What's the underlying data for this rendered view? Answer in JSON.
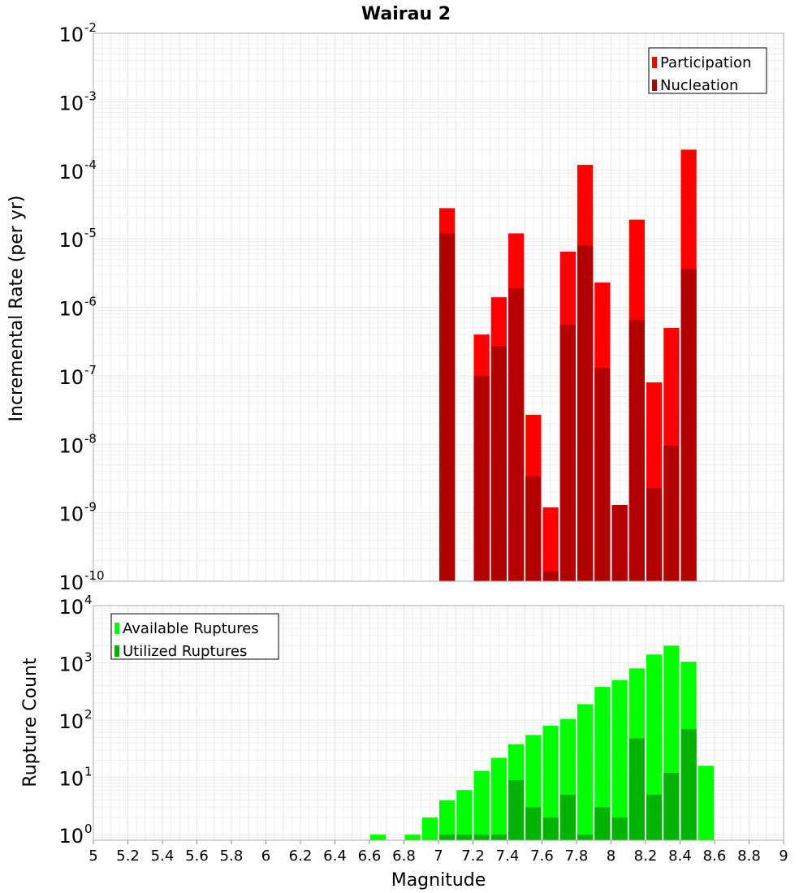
{
  "title": "Wairau 2",
  "colors": {
    "participation": "#ff0000",
    "nucleation": "#b30000",
    "available": "#00ff00",
    "utilized": "#00b300",
    "grid": "#e8e8e8",
    "border": "#aaaaaa"
  },
  "chart_data": [
    {
      "type": "bar",
      "panel": "top",
      "ylabel": "Incremental Rate (per yr)",
      "yscale": "log",
      "ylim": [
        1e-10,
        0.01
      ],
      "xlim": [
        5,
        9
      ],
      "legend_position": "top-right",
      "series": [
        {
          "name": "Participation",
          "x": [
            7.05,
            7.25,
            7.35,
            7.45,
            7.55,
            7.65,
            7.75,
            7.85,
            7.95,
            8.05,
            8.15,
            8.25,
            8.35,
            8.45
          ],
          "values": [
            2.8e-05,
            4e-07,
            1.4e-06,
            1.2e-05,
            2.7e-08,
            1.2e-09,
            6.5e-06,
            0.00012,
            2.3e-06,
            1.3e-09,
            1.9e-05,
            8e-08,
            5e-07,
            0.0002
          ]
        },
        {
          "name": "Nucleation",
          "x": [
            7.05,
            7.25,
            7.35,
            7.45,
            7.55,
            7.65,
            7.75,
            7.85,
            7.95,
            8.05,
            8.15,
            8.25,
            8.35,
            8.45
          ],
          "values": [
            1.2e-05,
            1e-07,
            2.7e-07,
            1.9e-06,
            3.4e-09,
            1.4e-10,
            5.5e-07,
            8e-06,
            1.3e-07,
            1.3e-09,
            6.5e-07,
            2.3e-09,
            9.5e-09,
            3.6e-06
          ]
        }
      ]
    },
    {
      "type": "bar",
      "panel": "bottom",
      "xlabel": "Magnitude",
      "ylabel": "Rupture Count",
      "yscale": "log",
      "ylim": [
        0.8,
        10000
      ],
      "xlim": [
        5,
        9
      ],
      "legend_position": "top-left",
      "x_ticks": [
        "5",
        "5.2",
        "5.4",
        "5.6",
        "5.8",
        "6",
        "6.2",
        "6.4",
        "6.6",
        "6.8",
        "7",
        "7.2",
        "7.4",
        "7.6",
        "7.8",
        "8",
        "8.2",
        "8.4",
        "8.6",
        "8.8",
        "9"
      ],
      "series": [
        {
          "name": "Available Ruptures",
          "x": [
            6.65,
            6.85,
            6.95,
            7.05,
            7.15,
            7.25,
            7.35,
            7.45,
            7.55,
            7.65,
            7.75,
            7.85,
            7.95,
            8.05,
            8.15,
            8.25,
            8.35,
            8.45,
            8.55
          ],
          "values": [
            1,
            1,
            2,
            4,
            6,
            13,
            22,
            38,
            55,
            80,
            105,
            190,
            380,
            500,
            800,
            1400,
            2000,
            1050,
            16
          ]
        },
        {
          "name": "Utilized Ruptures",
          "x": [
            7.05,
            7.15,
            7.25,
            7.35,
            7.45,
            7.55,
            7.65,
            7.75,
            7.85,
            7.95,
            8.05,
            8.15,
            8.25,
            8.35,
            8.45
          ],
          "values": [
            1,
            1,
            1,
            1,
            9,
            3,
            2,
            5,
            1,
            3,
            2,
            48,
            5,
            12,
            70
          ]
        }
      ]
    }
  ]
}
